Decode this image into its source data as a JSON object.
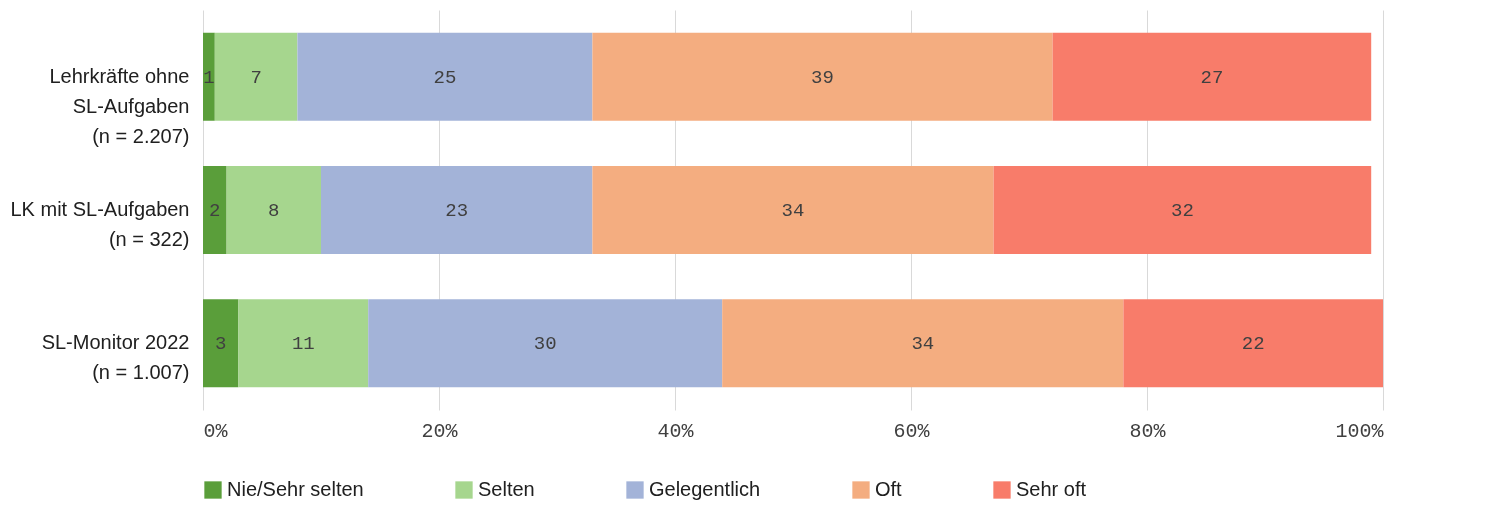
{
  "chart_data": {
    "type": "bar",
    "orientation": "horizontal",
    "stacked": true,
    "data_labels": true,
    "grid": "x",
    "legend": "bottom",
    "categories": [
      "Lehrkräfte ohne SL-Aufgaben (n = 2.207)",
      "LK mit SL-Aufgaben (n = 322)",
      "SL-Monitor 2022 (n = 1.007)"
    ],
    "series": [
      {
        "name": "Nie/Sehr selten",
        "color": "#5a9e3a",
        "values": [
          1,
          2,
          3
        ]
      },
      {
        "name": "Selten",
        "color": "#a6d68e",
        "values": [
          7,
          8,
          11
        ]
      },
      {
        "name": "Gelegentlich",
        "color": "#a3b3d8",
        "values": [
          25,
          23,
          30
        ]
      },
      {
        "name": "Oft",
        "color": "#f4ad80",
        "values": [
          39,
          34,
          34
        ]
      },
      {
        "name": "Sehr oft",
        "color": "#f87c6a",
        "values": [
          27,
          32,
          22
        ]
      }
    ],
    "xlim": [
      0,
      100
    ],
    "xticks": [
      {
        "value": 0,
        "label": "0%"
      },
      {
        "value": 20,
        "label": "20%"
      },
      {
        "value": 40,
        "label": "40%"
      },
      {
        "value": 60,
        "label": "60%"
      },
      {
        "value": 80,
        "label": "80%"
      },
      {
        "value": 100,
        "label": "100%"
      }
    ]
  }
}
